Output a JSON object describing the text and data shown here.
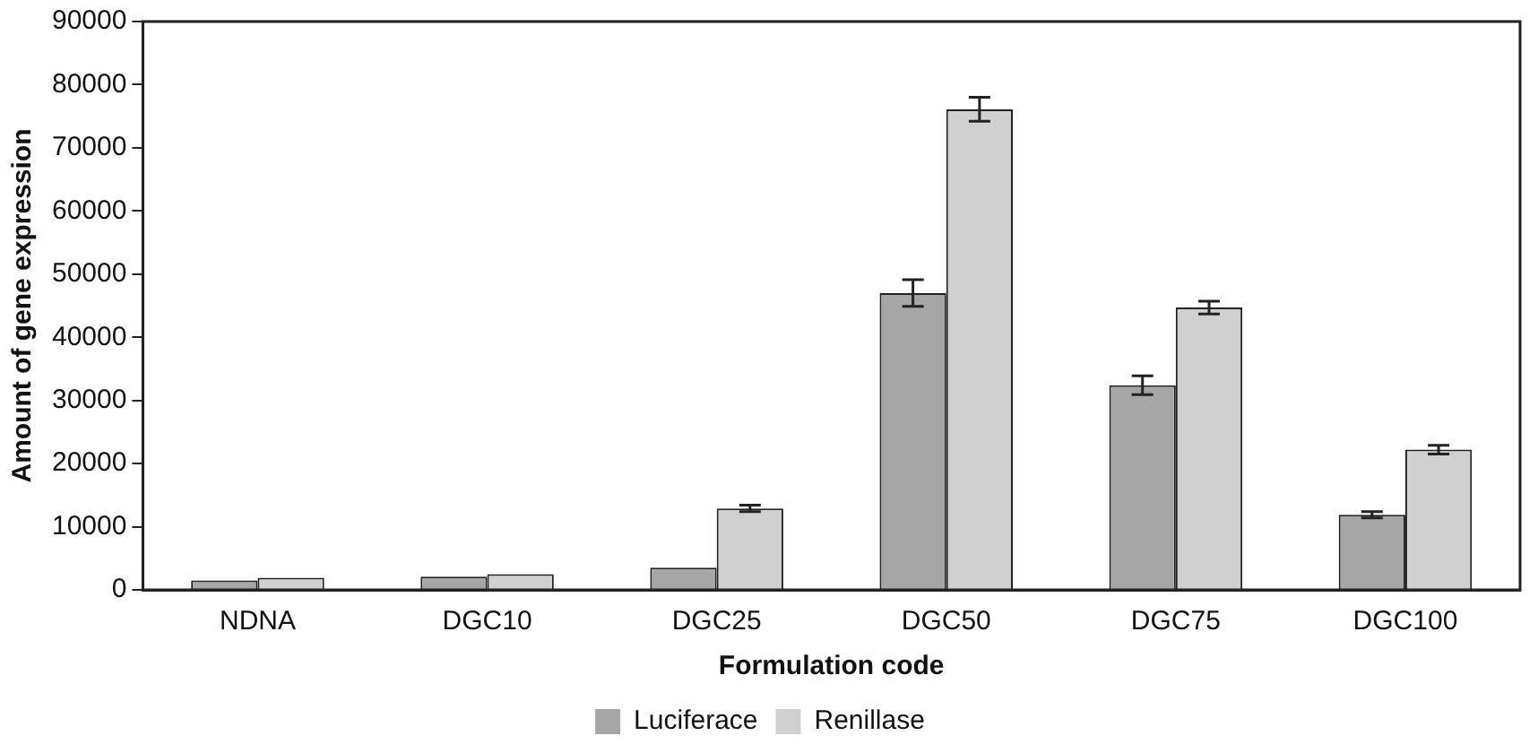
{
  "chart_data": {
    "type": "bar",
    "xlabel": "Formulation code",
    "ylabel": "Amount of gene expression",
    "categories": [
      "NDNA",
      "DGC10",
      "DGC25",
      "DGC50",
      "DGC75",
      "DGC100"
    ],
    "series": [
      {
        "name": "Luciferace",
        "color": "#a6a6a6",
        "values": [
          1500,
          2100,
          3500,
          47000,
          32400,
          11900
        ],
        "errors": [
          null,
          null,
          null,
          2100,
          1500,
          500
        ]
      },
      {
        "name": "Renillase",
        "color": "#d0d0d0",
        "values": [
          1900,
          2500,
          12900,
          76100,
          44700,
          22200
        ],
        "errors": [
          null,
          null,
          500,
          1900,
          1000,
          700
        ]
      }
    ],
    "ylim": [
      0,
      90000
    ],
    "yticks": [
      0,
      10000,
      20000,
      30000,
      40000,
      50000,
      60000,
      70000,
      80000,
      90000
    ],
    "grid": false,
    "legend": "bottom"
  }
}
